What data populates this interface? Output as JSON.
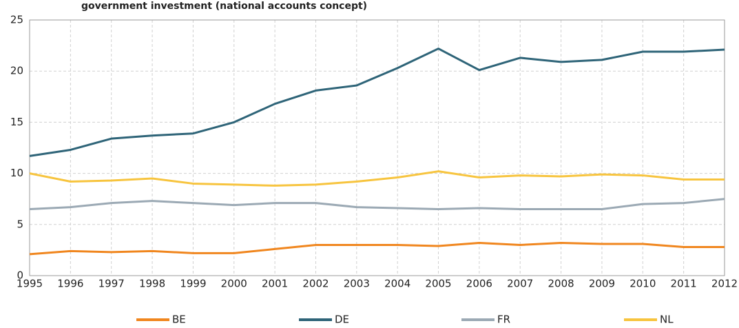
{
  "chart_data": {
    "type": "line",
    "title": "government investment (national accounts concept)",
    "categories": [
      "1995",
      "1996",
      "1997",
      "1998",
      "1999",
      "2000",
      "2001",
      "2002",
      "2003",
      "2004",
      "2005",
      "2006",
      "2007",
      "2008",
      "2009",
      "2010",
      "2011",
      "2012"
    ],
    "series": [
      {
        "name": "BE",
        "color": "#f0861e",
        "values": [
          2.1,
          2.4,
          2.3,
          2.4,
          2.2,
          2.2,
          2.6,
          3.0,
          3.0,
          3.0,
          2.9,
          3.2,
          3.0,
          3.2,
          3.1,
          3.1,
          2.8,
          2.8
        ]
      },
      {
        "name": "DE",
        "color": "#2e6478",
        "values": [
          11.7,
          12.3,
          13.4,
          13.7,
          13.9,
          15.0,
          16.8,
          18.1,
          18.6,
          20.3,
          22.2,
          20.1,
          21.3,
          20.9,
          21.1,
          21.9,
          21.9,
          22.1
        ]
      },
      {
        "name": "FR",
        "color": "#9ba9b4",
        "values": [
          6.5,
          6.7,
          7.1,
          7.3,
          7.1,
          6.9,
          7.1,
          7.1,
          6.7,
          6.6,
          6.5,
          6.6,
          6.5,
          6.5,
          6.5,
          7.0,
          7.1,
          7.5
        ]
      },
      {
        "name": "NL",
        "color": "#f7c43e",
        "values": [
          10.0,
          9.2,
          9.3,
          9.5,
          9.0,
          8.9,
          8.8,
          8.9,
          9.2,
          9.6,
          10.2,
          9.6,
          9.8,
          9.7,
          9.9,
          9.8,
          9.4,
          9.4
        ]
      }
    ],
    "ylim": [
      0,
      25
    ],
    "yticks": [
      0,
      5,
      10,
      15,
      20,
      25
    ],
    "grid": true
  }
}
